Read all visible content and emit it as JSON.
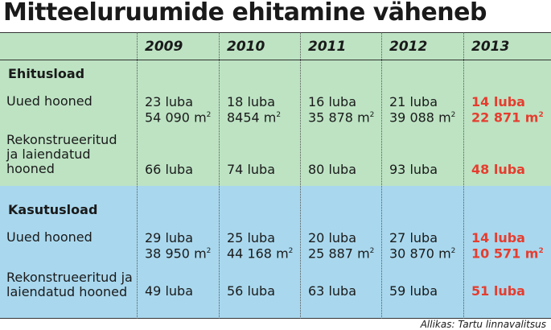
{
  "title": "Mitteeluruumide ehitamine väheneb",
  "years": [
    "2009",
    "2010",
    "2011",
    "2012",
    "2013"
  ],
  "sections": [
    {
      "name": "Ehitusload",
      "rows": [
        {
          "label": "Uued hooned",
          "cells": [
            {
              "count": "23 luba",
              "area": "54 090 m",
              "unit_sup": "2"
            },
            {
              "count": "18 luba",
              "area": "8454 m",
              "unit_sup": "2"
            },
            {
              "count": "16 luba",
              "area": "35 878 m",
              "unit_sup": "2"
            },
            {
              "count": "21 luba",
              "area": "39 088 m",
              "unit_sup": "2"
            },
            {
              "count": "14 luba",
              "area": "22 871 m",
              "unit_sup": "2"
            }
          ]
        },
        {
          "label_lines": [
            "Rekonstrueeritud",
            "ja laiendatud",
            "hooned"
          ],
          "cells": [
            "66 luba",
            "74 luba",
            "80 luba",
            "93 luba",
            "48 luba"
          ]
        }
      ]
    },
    {
      "name": "Kasutusload",
      "rows": [
        {
          "label": "Uued hooned",
          "cells": [
            {
              "count": "29 luba",
              "area": "38 950  m",
              "unit_sup": "2"
            },
            {
              "count": "25 luba",
              "area": "44 168  m",
              "unit_sup": "2"
            },
            {
              "count": "20 luba",
              "area": "25 887  m",
              "unit_sup": "2"
            },
            {
              "count": "27 luba",
              "area": "30 870  m",
              "unit_sup": "2"
            },
            {
              "count": "14 luba",
              "area": "10 571  m",
              "unit_sup": "2"
            }
          ]
        },
        {
          "label_lines": [
            "Rekonstrueeritud ja",
            "laiendatud hooned"
          ],
          "cells": [
            "49 luba",
            "56 luba",
            "63 luba",
            "59 luba",
            "51 luba"
          ]
        }
      ]
    }
  ],
  "highlight_color": "#e53d2f",
  "section_colors": {
    "Ehitusload": "#bde3c3",
    "Kasutusload": "#a9d8ee"
  },
  "source": "Allikas: Tartu linnavalitsus"
}
